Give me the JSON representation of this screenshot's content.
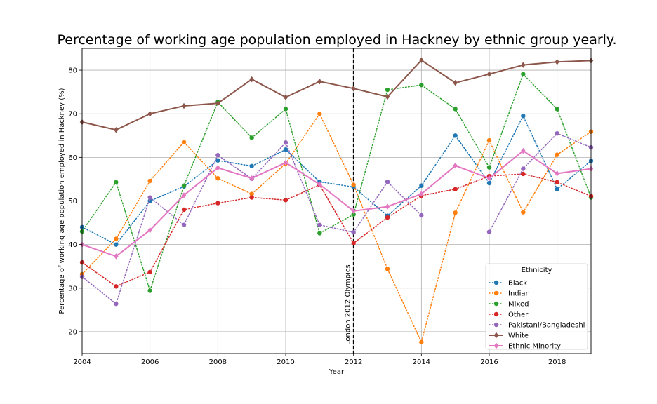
{
  "chart_data": {
    "type": "line",
    "title": "Percentage of working age population employed in Hackney by ethnic group yearly.",
    "xlabel": "Year",
    "ylabel": "Percentage of working age population employed in Hackney (%)",
    "xlim": [
      2004,
      2019
    ],
    "ylim": [
      15,
      85
    ],
    "x_ticks": [
      2004,
      2006,
      2008,
      2010,
      2012,
      2014,
      2016,
      2018
    ],
    "y_ticks": [
      20,
      30,
      40,
      50,
      60,
      70,
      80
    ],
    "grid": true,
    "legend": {
      "title": "Ethnicity",
      "placement": "lower-right"
    },
    "annotation": {
      "x": 2012,
      "text": "London 2012 Olympics",
      "style": "dashed vertical line"
    },
    "x": [
      2004,
      2005,
      2006,
      2007,
      2008,
      2009,
      2010,
      2011,
      2012,
      2013,
      2014,
      2015,
      2016,
      2017,
      2018,
      2019
    ],
    "series": [
      {
        "name": "Black",
        "color": "#1f77b4",
        "style": "dotted",
        "marker": "circle",
        "values": [
          44.0,
          40.0,
          50.0,
          53.3,
          59.3,
          58.0,
          61.8,
          54.4,
          53.2,
          46.6,
          53.5,
          65.0,
          54.1,
          69.5,
          52.7,
          59.2
        ]
      },
      {
        "name": "Indian",
        "color": "#ff7f0e",
        "style": "dotted",
        "marker": "circle",
        "values": [
          33.2,
          41.3,
          54.6,
          63.5,
          55.2,
          51.6,
          58.6,
          70.0,
          53.7,
          34.4,
          17.6,
          47.3,
          63.9,
          47.4,
          60.6,
          65.9
        ]
      },
      {
        "name": "Mixed",
        "color": "#2ca02c",
        "style": "dotted",
        "marker": "circle",
        "values": [
          43.0,
          54.3,
          29.4,
          53.5,
          72.7,
          64.5,
          71.1,
          42.6,
          46.9,
          75.5,
          76.6,
          71.1,
          57.7,
          79.1,
          71.1,
          50.8
        ]
      },
      {
        "name": "Other",
        "color": "#d62728",
        "style": "dotted",
        "marker": "circle",
        "values": [
          35.9,
          30.4,
          33.7,
          48.0,
          49.5,
          50.8,
          50.2,
          53.7,
          40.3,
          46.2,
          51.2,
          52.7,
          55.7,
          56.2,
          54.3,
          51.1
        ]
      },
      {
        "name": "Pakistani/Bangladeshi",
        "color": "#9467bd",
        "style": "dotted",
        "marker": "circle",
        "values": [
          32.6,
          26.4,
          50.8,
          44.5,
          60.5,
          55.1,
          63.4,
          44.5,
          42.8,
          54.4,
          46.7,
          null,
          42.9,
          57.4,
          65.5,
          62.3
        ]
      },
      {
        "name": "White",
        "color": "#8c564b",
        "style": "solid",
        "marker": "diamond",
        "values": [
          68.1,
          66.3,
          70.0,
          71.8,
          72.4,
          77.9,
          73.8,
          77.4,
          75.8,
          73.9,
          82.3,
          77.1,
          79.1,
          81.2,
          81.9,
          82.2
        ]
      },
      {
        "name": "Ethnic Minority",
        "color": "#e377c2",
        "style": "solid",
        "marker": "diamond",
        "values": [
          40.0,
          37.3,
          43.3,
          51.3,
          57.6,
          55.2,
          58.8,
          53.8,
          47.7,
          48.7,
          51.6,
          58.1,
          55.2,
          61.5,
          56.3,
          57.4
        ]
      }
    ]
  }
}
